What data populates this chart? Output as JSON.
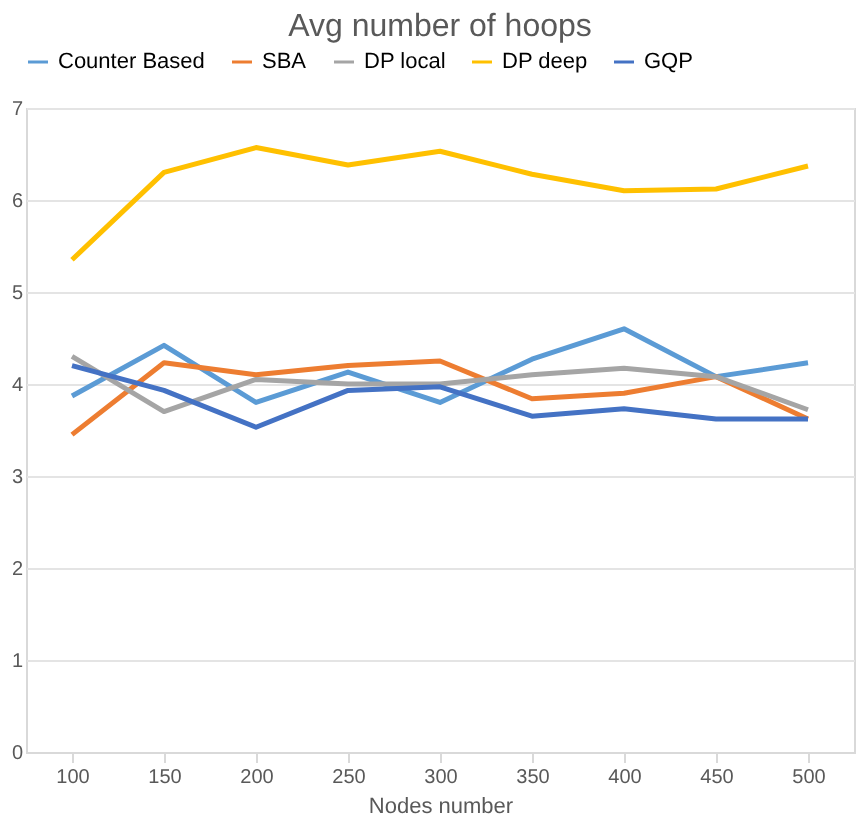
{
  "chart_data": {
    "type": "line",
    "title": "Avg number of hoops",
    "xlabel": "Nodes number",
    "categories": [
      "100",
      "150",
      "200",
      "250",
      "300",
      "350",
      "400",
      "450",
      "500"
    ],
    "series": [
      {
        "name": "Counter Based",
        "color": "#5b9bd5",
        "values": [
          3.87,
          4.42,
          3.8,
          4.13,
          3.8,
          4.27,
          4.6,
          4.08,
          4.23
        ]
      },
      {
        "name": "SBA",
        "color": "#ed7d31",
        "values": [
          3.45,
          4.23,
          4.1,
          4.2,
          4.25,
          3.84,
          3.9,
          4.08,
          3.62
        ]
      },
      {
        "name": "DP local",
        "color": "#a5a5a5",
        "values": [
          4.3,
          3.7,
          4.05,
          4.0,
          4.0,
          4.1,
          4.17,
          4.08,
          3.72
        ]
      },
      {
        "name": "DP deep",
        "color": "#ffc000",
        "values": [
          5.35,
          6.3,
          6.57,
          6.38,
          6.53,
          6.28,
          6.1,
          6.12,
          6.37
        ]
      },
      {
        "name": "GQP",
        "color": "#4472c4",
        "values": [
          4.2,
          3.93,
          3.53,
          3.93,
          3.97,
          3.65,
          3.73,
          3.62,
          3.62
        ]
      }
    ],
    "ylim": [
      0,
      7
    ],
    "yticks": [
      0,
      1,
      2,
      3,
      4,
      5,
      6,
      7
    ],
    "grid": "y",
    "legend": "top",
    "marker": "none",
    "line_style": "solid"
  }
}
